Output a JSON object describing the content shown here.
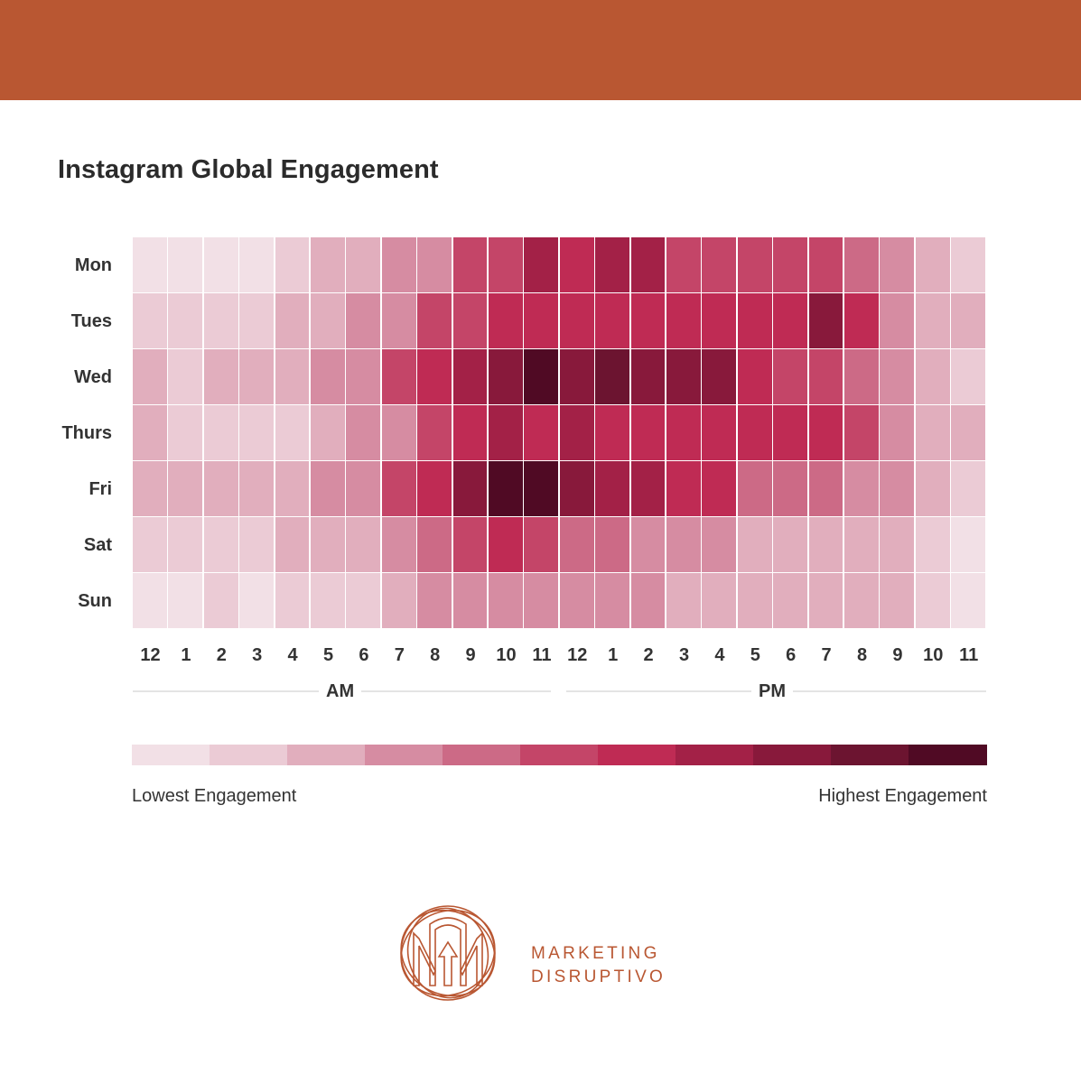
{
  "colors": {
    "top_bar": "#b95732",
    "brand": "#b95732",
    "scale": [
      "#f2e0e6",
      "#ebcbd5",
      "#e1aebd",
      "#d68ca2",
      "#cc6a86",
      "#c44568",
      "#bf2b54",
      "#a32147",
      "#88193b",
      "#6c1430",
      "#500a24"
    ]
  },
  "chart_data": {
    "type": "heatmap",
    "title": "Instagram Global Engagement",
    "rows": [
      "Mon",
      "Tues",
      "Wed",
      "Thurs",
      "Fri",
      "Sat",
      "Sun"
    ],
    "columns": [
      "12",
      "1",
      "2",
      "3",
      "4",
      "5",
      "6",
      "7",
      "8",
      "9",
      "10",
      "11",
      "12",
      "1",
      "2",
      "3",
      "4",
      "5",
      "6",
      "7",
      "8",
      "9",
      "10",
      "11"
    ],
    "periods": [
      "AM",
      "PM"
    ],
    "values": [
      [
        0,
        0,
        0,
        0,
        1,
        2,
        2,
        3,
        3,
        5,
        5,
        7,
        6,
        7,
        7,
        5,
        5,
        5,
        5,
        5,
        4,
        3,
        2,
        1
      ],
      [
        1,
        1,
        1,
        1,
        2,
        2,
        3,
        3,
        5,
        5,
        6,
        6,
        6,
        6,
        6,
        6,
        6,
        6,
        6,
        8,
        6,
        3,
        2,
        2
      ],
      [
        2,
        1,
        2,
        2,
        2,
        3,
        3,
        5,
        6,
        7,
        8,
        10,
        8,
        9,
        8,
        8,
        8,
        6,
        5,
        5,
        4,
        3,
        2,
        1
      ],
      [
        2,
        1,
        1,
        1,
        1,
        2,
        3,
        3,
        5,
        6,
        7,
        6,
        7,
        6,
        6,
        6,
        6,
        6,
        6,
        6,
        5,
        3,
        2,
        2
      ],
      [
        2,
        2,
        2,
        2,
        2,
        3,
        3,
        5,
        6,
        8,
        10,
        10,
        8,
        7,
        7,
        6,
        6,
        4,
        4,
        4,
        3,
        3,
        2,
        1
      ],
      [
        1,
        1,
        1,
        1,
        2,
        2,
        2,
        3,
        4,
        5,
        6,
        5,
        4,
        4,
        3,
        3,
        3,
        2,
        2,
        2,
        2,
        2,
        1,
        0
      ],
      [
        0,
        0,
        1,
        0,
        1,
        1,
        1,
        2,
        3,
        3,
        3,
        3,
        3,
        3,
        3,
        2,
        2,
        2,
        2,
        2,
        2,
        2,
        1,
        0
      ]
    ],
    "scale_min_label": "Lowest Engagement",
    "scale_max_label": "Highest Engagement"
  },
  "brand": {
    "line1": "MARKETING",
    "line2": "DISRUPTIVO"
  }
}
